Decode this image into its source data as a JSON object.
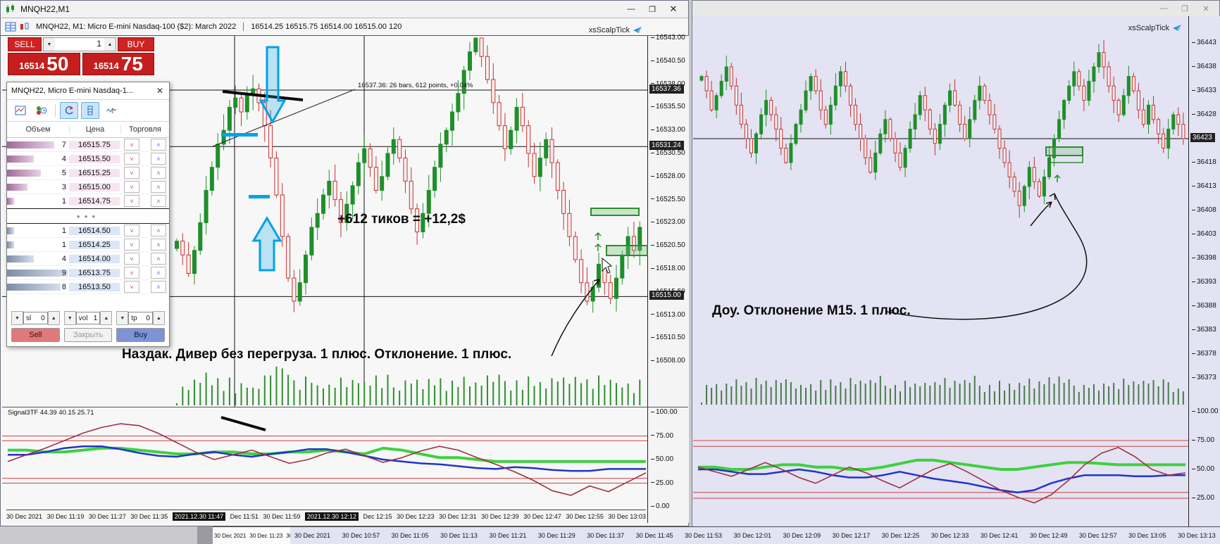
{
  "left_window": {
    "title": "MNQH22,M1",
    "window_buttons": {
      "minimize": "—",
      "maximize": "❐",
      "close": "✕"
    },
    "header": {
      "symbol_line": "MNQH22, M1:  Micro E-mini Nasdaq-100 ($2): March 2022",
      "ohlcv_line": "16514.25 16515.75 16514.00 16515.00  120"
    },
    "watermark": "xsScalpTick",
    "trade_panel": {
      "sell_label": "SELL",
      "buy_label": "BUY",
      "volume_value": "1",
      "sell_price_big": "16514",
      "sell_price_frac": "50",
      "buy_price_big": "16514",
      "buy_price_frac": "75"
    },
    "dom": {
      "title": "MNQH22, Micro E-mini Nasdaq-1...",
      "close_glyph": "✕",
      "columns": [
        "Объем",
        "Цена",
        "Торговля"
      ],
      "asks": [
        {
          "vol": "7",
          "price": "16515.75"
        },
        {
          "vol": "4",
          "price": "16515.50"
        },
        {
          "vol": "5",
          "price": "16515.25"
        },
        {
          "vol": "3",
          "price": "16515.00"
        },
        {
          "vol": "1",
          "price": "16514.75"
        }
      ],
      "bids": [
        {
          "vol": "1",
          "price": "16514.50"
        },
        {
          "vol": "1",
          "price": "16514.25"
        },
        {
          "vol": "4",
          "price": "16514.00"
        },
        {
          "vol": "9",
          "price": "16513.75"
        },
        {
          "vol": "8",
          "price": "16513.50"
        }
      ],
      "separator_dots": "●●●",
      "footer": {
        "sl_label": "sl",
        "sl_value": "0",
        "vol_label": "vol",
        "vol_value": "1",
        "tp_label": "tp",
        "tp_value": "0",
        "sell": "Sell",
        "close": "Закрыть",
        "buy": "Buy"
      }
    },
    "annotations": {
      "measure": "16537.36: 26 bars, 612 points, +0.04%",
      "ticks_note": "+612 тиков = +12,2$",
      "bottom_note": "Наздак. Дивер без перегруза. 1 плюс. Отклонение. 1 плюс."
    },
    "price_axis": {
      "labels": [
        {
          "t": "16543.00",
          "p": 16543.0
        },
        {
          "t": "16540.50",
          "p": 16540.5
        },
        {
          "t": "16538.00",
          "p": 16538.0
        },
        {
          "t": "16535.50",
          "p": 16535.5
        },
        {
          "t": "16533.00",
          "p": 16533.0
        },
        {
          "t": "16530.50",
          "p": 16530.5
        },
        {
          "t": "16528.00",
          "p": 16528.0
        },
        {
          "t": "16525.50",
          "p": 16525.5
        },
        {
          "t": "16523.00",
          "p": 16523.0
        },
        {
          "t": "16520.50",
          "p": 16520.5
        },
        {
          "t": "16518.00",
          "p": 16518.0
        },
        {
          "t": "16515.50",
          "p": 16515.5
        },
        {
          "t": "16513.00",
          "p": 16513.0
        },
        {
          "t": "16510.50",
          "p": 16510.5
        },
        {
          "t": "16508.00",
          "p": 16508.0
        }
      ],
      "badges": [
        {
          "t": "16537.36",
          "p": 16537.36
        },
        {
          "t": "16531.24",
          "p": 16531.24
        },
        {
          "t": "16515.00",
          "p": 16515.0
        }
      ]
    },
    "indicator": {
      "label": "Signal3TF 44.39 40.15 25.71",
      "axis": [
        {
          "t": "100.00",
          "v": 100
        },
        {
          "t": "75.00",
          "v": 75
        },
        {
          "t": "50.00",
          "v": 50
        },
        {
          "t": "25.00",
          "v": 25
        },
        {
          "t": "0.00",
          "v": 0
        }
      ],
      "levels": [
        75,
        70,
        30,
        25
      ],
      "green": [
        60,
        60,
        58,
        58,
        60,
        62,
        62,
        60,
        58,
        56,
        56,
        58,
        58,
        56,
        56,
        58,
        58,
        60,
        58,
        56,
        62,
        60,
        56,
        52,
        52,
        50,
        48,
        48,
        48,
        48,
        48,
        48,
        48,
        48,
        48
      ],
      "blue": [
        55,
        55,
        58,
        62,
        64,
        64,
        61,
        57,
        54,
        53,
        56,
        58,
        55,
        53,
        56,
        58,
        61,
        61,
        58,
        54,
        50,
        48,
        46,
        45,
        43,
        41,
        40,
        42,
        41,
        39,
        38,
        38,
        40,
        40,
        40
      ],
      "crimson": [
        48,
        55,
        62,
        70,
        78,
        84,
        88,
        86,
        78,
        68,
        58,
        50,
        55,
        60,
        53,
        46,
        50,
        57,
        61,
        54,
        47,
        52,
        59,
        64,
        60,
        52,
        45,
        37,
        28,
        17,
        12,
        22,
        16,
        26,
        36
      ]
    },
    "time_axis": [
      {
        "t": "30 Dec 2021"
      },
      {
        "t": "30 Dec 11:19"
      },
      {
        "t": "30 Dec 11:27"
      },
      {
        "t": "30 Dec 11:35"
      },
      {
        "t": "2021.12.30 11:47",
        "hl": true
      },
      {
        "t": "Dec 11:51"
      },
      {
        "t": "30 Dec 11:59"
      },
      {
        "t": "2021.12.30 12:12",
        "hl": true
      },
      {
        "t": "Dec 12:15"
      },
      {
        "t": "30 Dec 12:23"
      },
      {
        "t": "30 Dec 12:31"
      },
      {
        "t": "30 Dec 12:39"
      },
      {
        "t": "30 Dec 12:47"
      },
      {
        "t": "30 Dec 12:55"
      },
      {
        "t": "30 Dec 13:03"
      }
    ],
    "chart": {
      "hlines": [
        16537.36,
        16531.24,
        16515.0
      ],
      "vlines_x": [
        332,
        516
      ],
      "closes": [
        16521.0,
        16519.5,
        16517.5,
        16520.0,
        16523.0,
        16526.5,
        16529.0,
        16531.5,
        16533.0,
        16535.5,
        16536.5,
        16535.0,
        16536.8,
        16537.5,
        16536.0,
        16533.5,
        16530.0,
        16526.0,
        16521.5,
        16517.0,
        16514.5,
        16516.5,
        16519.5,
        16522.5,
        16524.0,
        16526.0,
        16527.5,
        16525.5,
        16523.0,
        16525.0,
        16527.0,
        16529.5,
        16531.0,
        16529.0,
        16526.5,
        16528.0,
        16530.5,
        16532.0,
        16530.0,
        16527.5,
        16524.5,
        16522.0,
        16524.0,
        16526.5,
        16529.0,
        16531.5,
        16533.0,
        16535.0,
        16537.0,
        16539.5,
        16541.5,
        16543.0,
        16541.0,
        16538.5,
        16536.0,
        16533.5,
        16531.0,
        16533.0,
        16535.5,
        16533.5,
        16530.5,
        16528.0,
        16530.0,
        16532.0,
        16529.5,
        16526.5,
        16524.0,
        16521.5,
        16519.0,
        16516.5,
        16514.5,
        16516.0,
        16518.5,
        16516.5,
        16514.8,
        16517.0,
        16519.5,
        16521.5,
        16520.0,
        16522.5
      ]
    }
  },
  "right_window": {
    "title": "",
    "window_buttons": {
      "minimize": "—",
      "maximize": "❐",
      "close": "✕"
    },
    "watermark": "xsScalpTick",
    "note": "Доу. Отклонение M15. 1 плюс.",
    "price_axis": {
      "labels": [
        {
          "t": "36443",
          "p": 36443
        },
        {
          "t": "36438",
          "p": 36438
        },
        {
          "t": "36433",
          "p": 36433
        },
        {
          "t": "36428",
          "p": 36428
        },
        {
          "t": "36423",
          "p": 36423,
          "hl": true
        },
        {
          "t": "36418",
          "p": 36418
        },
        {
          "t": "36413",
          "p": 36413
        },
        {
          "t": "36408",
          "p": 36408
        },
        {
          "t": "36403",
          "p": 36403
        },
        {
          "t": "36398",
          "p": 36398
        },
        {
          "t": "36393",
          "p": 36393
        },
        {
          "t": "36388",
          "p": 36388
        },
        {
          "t": "36383",
          "p": 36383
        },
        {
          "t": "36378",
          "p": 36378
        },
        {
          "t": "36373",
          "p": 36373
        }
      ]
    },
    "indicator": {
      "axis": [
        {
          "t": "100.00",
          "v": 100
        },
        {
          "t": "75.00",
          "v": 75
        },
        {
          "t": "50.00",
          "v": 50
        },
        {
          "t": "25.00",
          "v": 25
        }
      ],
      "levels": [
        75,
        70,
        30,
        25
      ],
      "green": [
        52,
        52,
        50,
        50,
        52,
        54,
        54,
        52,
        52,
        50,
        50,
        52,
        55,
        58,
        58,
        56,
        54,
        52,
        50,
        50,
        52,
        54,
        56,
        56,
        55,
        54,
        54,
        54,
        54,
        54
      ],
      "blue": [
        50,
        50,
        48,
        46,
        46,
        48,
        50,
        48,
        45,
        43,
        43,
        45,
        48,
        45,
        42,
        40,
        38,
        35,
        32,
        30,
        32,
        38,
        42,
        45,
        45,
        45,
        44,
        44,
        45,
        45
      ],
      "crimson": [
        52,
        48,
        44,
        50,
        56,
        50,
        43,
        38,
        45,
        52,
        47,
        40,
        34,
        42,
        50,
        55,
        48,
        40,
        32,
        26,
        21,
        28,
        40,
        54,
        64,
        69,
        61,
        50,
        45,
        47
      ]
    },
    "chart": {
      "current_price": 36423,
      "closes": [
        36436,
        36433,
        36429,
        36432,
        36435,
        36438,
        36434,
        36430,
        36426,
        36423,
        36420,
        36424,
        36428,
        36431,
        36428,
        36425,
        36421,
        36418,
        36422,
        36426,
        36429,
        36433,
        36436,
        36433,
        36429,
        36426,
        36430,
        36434,
        36437,
        36434,
        36430,
        36426,
        36423,
        36419,
        36416,
        36420,
        36424,
        36427,
        36423,
        36420,
        36417,
        36421,
        36425,
        36428,
        36432,
        36429,
        36425,
        36422,
        36426,
        36430,
        36433,
        36430,
        36426,
        36423,
        36427,
        36431,
        36434,
        36431,
        36428,
        36425,
        36421,
        36418,
        36415,
        36412,
        36409,
        36413,
        36417,
        36414,
        36411,
        36415,
        36419,
        36423,
        36427,
        36431,
        36434,
        36437,
        36434,
        36431,
        36435,
        36438,
        36441,
        36438,
        36434,
        36431,
        36428,
        36432,
        36436,
        36433,
        36429,
        36426,
        36430,
        36427,
        36424,
        36421,
        36425,
        36428,
        36426,
        36423
      ]
    }
  },
  "bottom_strip": {
    "white_labels": [
      "30 Dec 2021",
      "30 Dec 11:23",
      "30 De"
    ],
    "labels": [
      "30 Dec 2021",
      "30 Dec 10:57",
      "30 Dec 11:05",
      "30 Dec 11:13",
      "30 Dec 11:21",
      "30 Dec 11:29",
      "30 Dec 11:37",
      "30 Dec 11:45",
      "30 Dec 11:53",
      "30 Dec 12:01",
      "30 Dec 12:09",
      "30 Dec 12:17",
      "30 Dec 12:25",
      "30 Dec 12:33",
      "30 Dec 12:41",
      "30 Dec 12:49",
      "30 Dec 12:57",
      "30 Dec 13:05",
      "30 Dec 13:13"
    ]
  },
  "colors": {
    "candle_up": "#1f8f2a",
    "candle_down": "#c23232",
    "accent_blue": "#00a2e8",
    "indicator_green": "#3fd03f",
    "indicator_blue": "#2233cc",
    "indicator_crimson": "#a03040",
    "level_red": "#d04040",
    "badge_bg": "#222222",
    "tile_red": "#c41e1e"
  }
}
